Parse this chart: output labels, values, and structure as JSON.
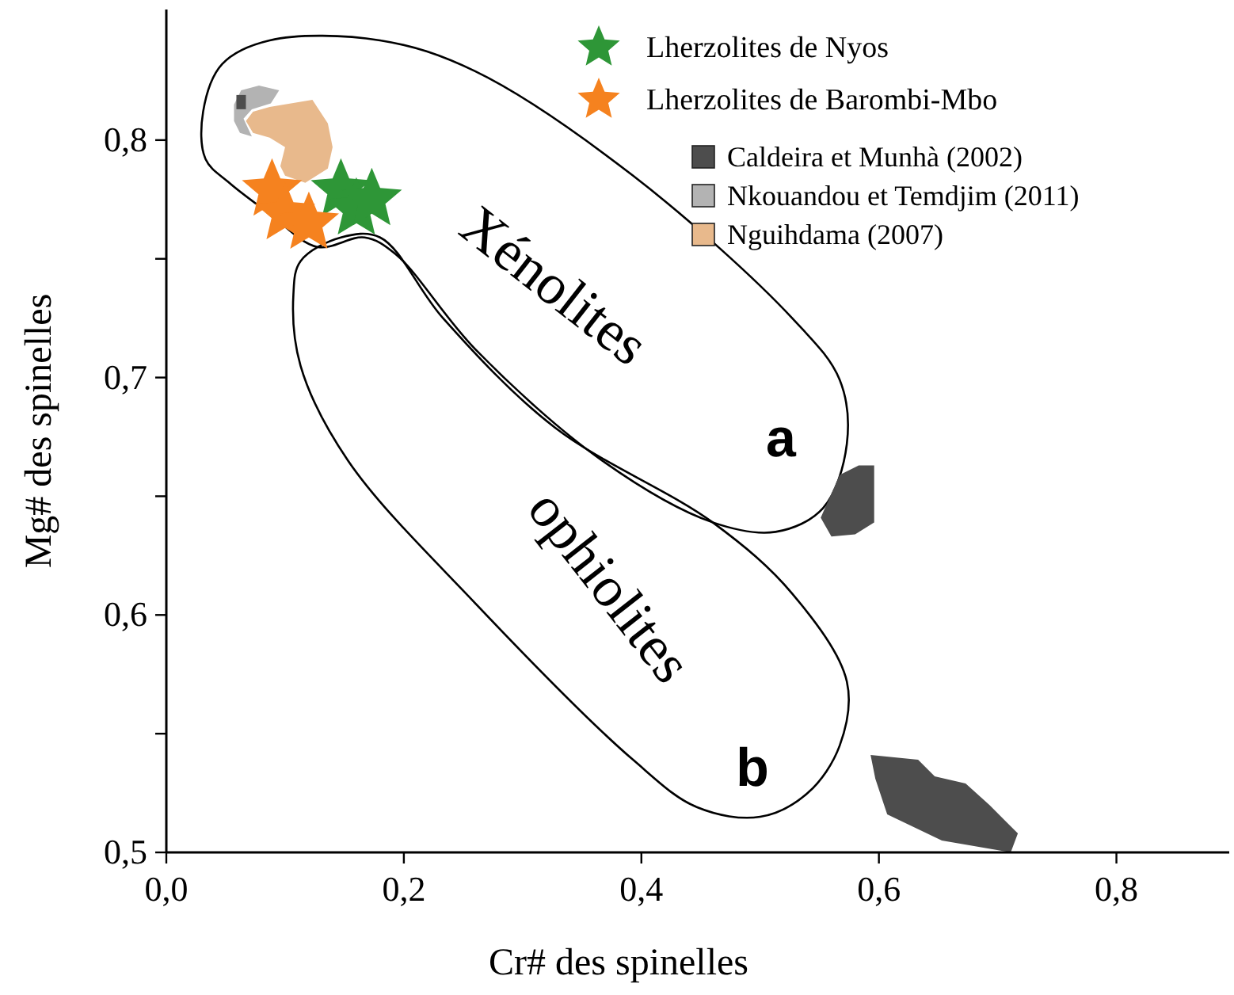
{
  "chart_data": {
    "type": "scatter",
    "xlabel": "Cr# des spinelles",
    "ylabel": "Mg# des spinelles",
    "xlim": [
      0,
      0.895
    ],
    "ylim": [
      0.5,
      0.855
    ],
    "xticks": [
      {
        "value": 0,
        "label": "0,0"
      },
      {
        "value": 0.2,
        "label": "0,2"
      },
      {
        "value": 0.4,
        "label": "0,4"
      },
      {
        "value": 0.6,
        "label": "0,6"
      },
      {
        "value": 0.8,
        "label": "0,8"
      }
    ],
    "yticks": [
      {
        "value": 0.5,
        "label": "0,5"
      },
      {
        "value": 0.55,
        "label": null
      },
      {
        "value": 0.6,
        "label": "0,6"
      },
      {
        "value": 0.65,
        "label": null
      },
      {
        "value": 0.7,
        "label": "0,7"
      },
      {
        "value": 0.75,
        "label": null
      },
      {
        "value": 0.8,
        "label": "0,8"
      }
    ],
    "grid": false,
    "legend": "top right",
    "series": [
      {
        "type": "area",
        "name": "Caldeira et Munhà (2002)",
        "color": "#4d4d4d",
        "x": [
          0.583,
          0.596,
          0.596,
          0.58,
          0.56,
          0.551,
          0.567
        ],
        "values": [
          0.663,
          0.663,
          0.639,
          0.634,
          0.633,
          0.641,
          0.659
        ]
      },
      {
        "type": "area",
        "color": "#4d4d4d",
        "x": [
          0.593,
          0.633,
          0.647,
          0.673,
          0.693,
          0.717,
          0.711,
          0.653,
          0.607,
          0.597
        ],
        "values": [
          0.541,
          0.539,
          0.532,
          0.529,
          0.52,
          0.508,
          0.5,
          0.505,
          0.516,
          0.531
        ]
      },
      {
        "type": "area",
        "name": "Nkouandou et Temdjim (2011)",
        "color": "#b3b3b3",
        "x": [
          0.057,
          0.063,
          0.078,
          0.095,
          0.088,
          0.072,
          0.065,
          0.072,
          0.062,
          0.057
        ],
        "values": [
          0.815,
          0.821,
          0.823,
          0.821,
          0.8155,
          0.813,
          0.809,
          0.8015,
          0.803,
          0.808
        ]
      },
      {
        "type": "area",
        "color": "#4d4d4d",
        "x": [
          0.059,
          0.067,
          0.067,
          0.059
        ],
        "values": [
          0.819,
          0.819,
          0.813,
          0.813
        ]
      },
      {
        "type": "area",
        "name": "Nguihdama (2007)",
        "color": "#e8b98c",
        "x": [
          0.073,
          0.087,
          0.123,
          0.136,
          0.14,
          0.136,
          0.117,
          0.1,
          0.096,
          0.1,
          0.087,
          0.073,
          0.067
        ],
        "values": [
          0.812,
          0.814,
          0.817,
          0.807,
          0.797,
          0.788,
          0.782,
          0.785,
          0.789,
          0.797,
          0.801,
          0.803,
          0.808
        ]
      },
      {
        "name": "Lherzolites de Nyos",
        "color": "#2e9637",
        "marker": "star",
        "x": [
          0.147,
          0.16,
          0.173
        ],
        "values": [
          0.779,
          0.771,
          0.775
        ]
      },
      {
        "name": "Lherzolites de Barombi-Mbo",
        "color": "#f5821f",
        "marker": "star",
        "x": [
          0.089,
          0.1,
          0.12
        ],
        "values": [
          0.779,
          0.769,
          0.765
        ]
      }
    ],
    "annotations": [
      "Xénolites",
      "ophiolites",
      "a",
      "b"
    ]
  }
}
